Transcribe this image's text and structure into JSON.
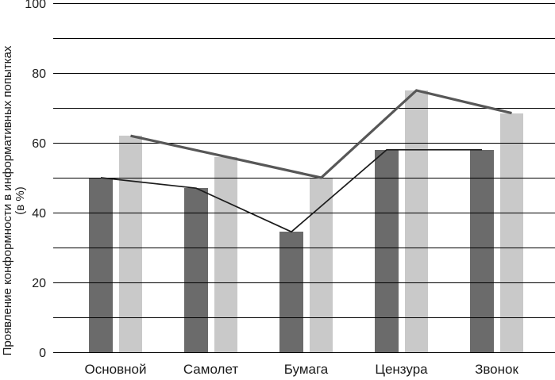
{
  "chart_data": {
    "type": "bar",
    "title": "",
    "categories": [
      "Основной",
      "Самолет",
      "Бумага",
      "Цензура",
      "Звонок"
    ],
    "series": [
      {
        "id": "dark-bars",
        "kind": "bar",
        "color": "#6b6b6b",
        "values": [
          50,
          47,
          34.5,
          58,
          58
        ]
      },
      {
        "id": "light-bars",
        "kind": "bar",
        "color": "#c9c9c9",
        "values": [
          62,
          56,
          50,
          75,
          68.5
        ]
      },
      {
        "id": "dark-line",
        "kind": "line",
        "color": "#1c1c1c",
        "stroke_width": 1.7,
        "follows": "dark-bars",
        "values": [
          50,
          47,
          34.5,
          58,
          58
        ]
      },
      {
        "id": "light-line",
        "kind": "line",
        "color": "#575757",
        "stroke_width": 3.2,
        "follows": "light-bars",
        "values": [
          62,
          56,
          50,
          75,
          68.5
        ]
      }
    ],
    "ylabel": "Проявление конформности в информативных попытках (в %)",
    "ylabel_lines": [
      "Проявление конформности в информативных попытках",
      "(в %)"
    ],
    "xlabel": "",
    "ylim": [
      0,
      100
    ],
    "grid": true,
    "grid_step": 10,
    "gridline_color": "#000000",
    "ytick_values": [
      0,
      20,
      40,
      60,
      80,
      100
    ],
    "ytick_labels": [
      "0",
      "20",
      "40",
      "60",
      "80",
      "100"
    ],
    "legend": "none",
    "text_color": "#1a1a1a",
    "background_color": "#ffffff"
  }
}
